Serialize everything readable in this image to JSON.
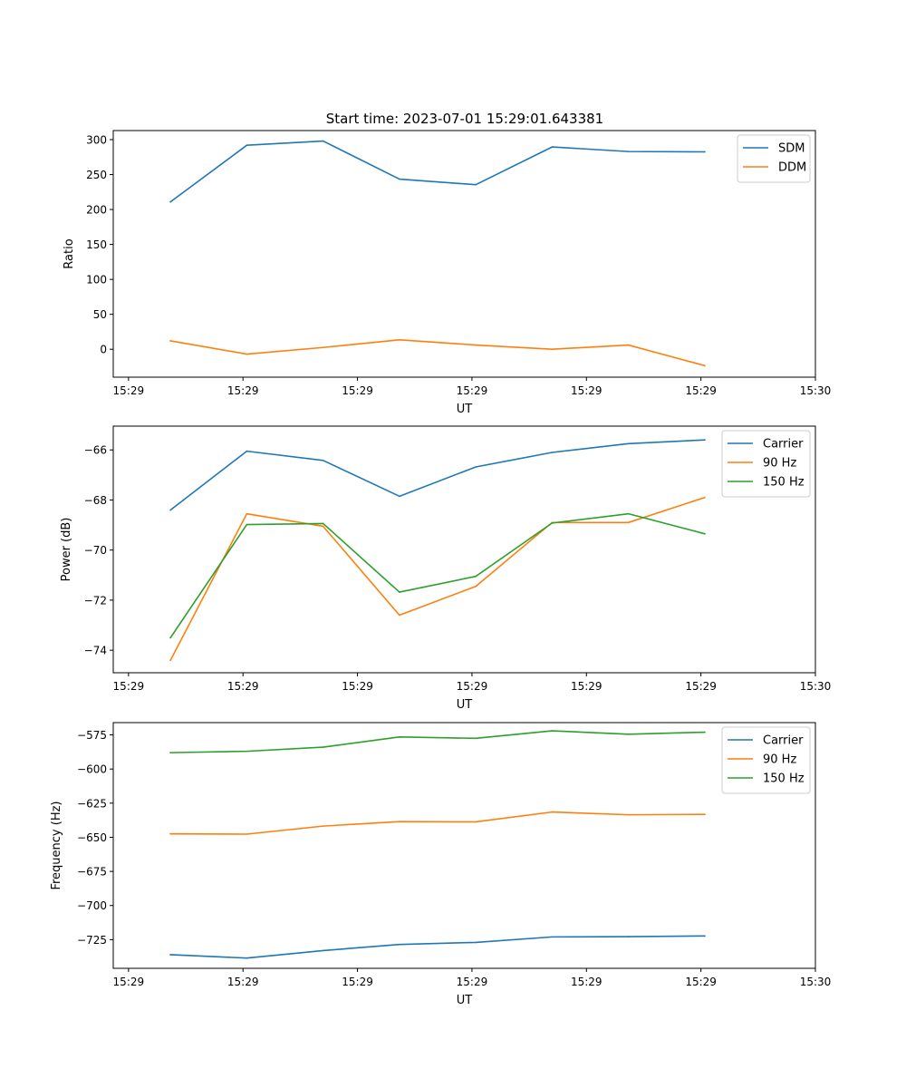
{
  "figure_title": "Start time: 2023-07-01 15:29:01.643381",
  "chart_data": [
    {
      "type": "line",
      "title": "Start time: 2023-07-01 15:29:01.643381",
      "xlabel": "UT",
      "ylabel": "Ratio",
      "xlim": [
        0,
        9.2
      ],
      "ylim": [
        -40,
        313
      ],
      "x": [
        0.75,
        1.75,
        2.75,
        3.75,
        4.75,
        5.75,
        6.75,
        7.75
      ],
      "xticks": [
        0.2,
        1.7,
        3.2,
        4.7,
        6.2,
        7.7,
        9.2
      ],
      "xtick_labels": [
        "15:29",
        "15:29",
        "15:29",
        "15:29",
        "15:29",
        "15:29",
        "15:30"
      ],
      "yticks": [
        0,
        50,
        100,
        150,
        200,
        250,
        300
      ],
      "ytick_labels": [
        "0",
        "50",
        "100",
        "150",
        "200",
        "250",
        "300"
      ],
      "legend_position": "top-right",
      "series": [
        {
          "name": "SDM",
          "color": "#1f77b4",
          "values": [
            211,
            292,
            298,
            243.5,
            235.5,
            289.5,
            283,
            282.5
          ]
        },
        {
          "name": "DDM",
          "color": "#ff7f0e",
          "values": [
            12,
            -7,
            2.5,
            13.5,
            6,
            0,
            6,
            -23.5
          ]
        }
      ]
    },
    {
      "type": "line",
      "title": "",
      "xlabel": "UT",
      "ylabel": "Power (dB)",
      "xlim": [
        0,
        9.2
      ],
      "ylim": [
        -74.9,
        -65.05
      ],
      "x": [
        0.75,
        1.75,
        2.75,
        3.75,
        4.75,
        5.75,
        6.75,
        7.75
      ],
      "xticks": [
        0.2,
        1.7,
        3.2,
        4.7,
        6.2,
        7.7,
        9.2
      ],
      "xtick_labels": [
        "15:29",
        "15:29",
        "15:29",
        "15:29",
        "15:29",
        "15:29",
        "15:30"
      ],
      "yticks": [
        -74,
        -72,
        -70,
        -68,
        -66
      ],
      "ytick_labels": [
        "−74",
        "−72",
        "−70",
        "−68",
        "−66"
      ],
      "legend_position": "top-right",
      "series": [
        {
          "name": "Carrier",
          "color": "#1f77b4",
          "values": [
            -68.4,
            -66.05,
            -66.42,
            -67.85,
            -66.68,
            -66.1,
            -65.75,
            -65.6
          ]
        },
        {
          "name": "90 Hz",
          "color": "#ff7f0e",
          "values": [
            -74.4,
            -68.55,
            -69.05,
            -72.6,
            -71.45,
            -68.9,
            -68.9,
            -67.9
          ]
        },
        {
          "name": "150 Hz",
          "color": "#2ca02c",
          "values": [
            -73.5,
            -68.98,
            -68.94,
            -71.68,
            -71.05,
            -68.92,
            -68.55,
            -69.35
          ]
        }
      ]
    },
    {
      "type": "line",
      "title": "",
      "xlabel": "UT",
      "ylabel": "Frequency (Hz)",
      "xlim": [
        0,
        9.2
      ],
      "ylim": [
        -746,
        -566
      ],
      "x": [
        0.75,
        1.75,
        2.75,
        3.75,
        4.75,
        5.75,
        6.75,
        7.75
      ],
      "xticks": [
        0.2,
        1.7,
        3.2,
        4.7,
        6.2,
        7.7,
        9.2
      ],
      "xtick_labels": [
        "15:29",
        "15:29",
        "15:29",
        "15:29",
        "15:29",
        "15:29",
        "15:30"
      ],
      "yticks": [
        -725,
        -700,
        -675,
        -650,
        -625,
        -600,
        -575
      ],
      "ytick_labels": [
        "−725",
        "−700",
        "−675",
        "−650",
        "−625",
        "−600",
        "−575"
      ],
      "legend_position": "top-right",
      "series": [
        {
          "name": "Carrier",
          "color": "#1f77b4",
          "values": [
            -736,
            -738.5,
            -733,
            -728.5,
            -727,
            -723,
            -722.8,
            -722.3
          ]
        },
        {
          "name": "90 Hz",
          "color": "#ff7f0e",
          "values": [
            -647.5,
            -647.7,
            -641.8,
            -638.5,
            -638.7,
            -631.5,
            -633.5,
            -633.2
          ]
        },
        {
          "name": "150 Hz",
          "color": "#2ca02c",
          "values": [
            -588,
            -587,
            -584,
            -576.5,
            -577.5,
            -572,
            -574.5,
            -573
          ]
        }
      ]
    }
  ]
}
